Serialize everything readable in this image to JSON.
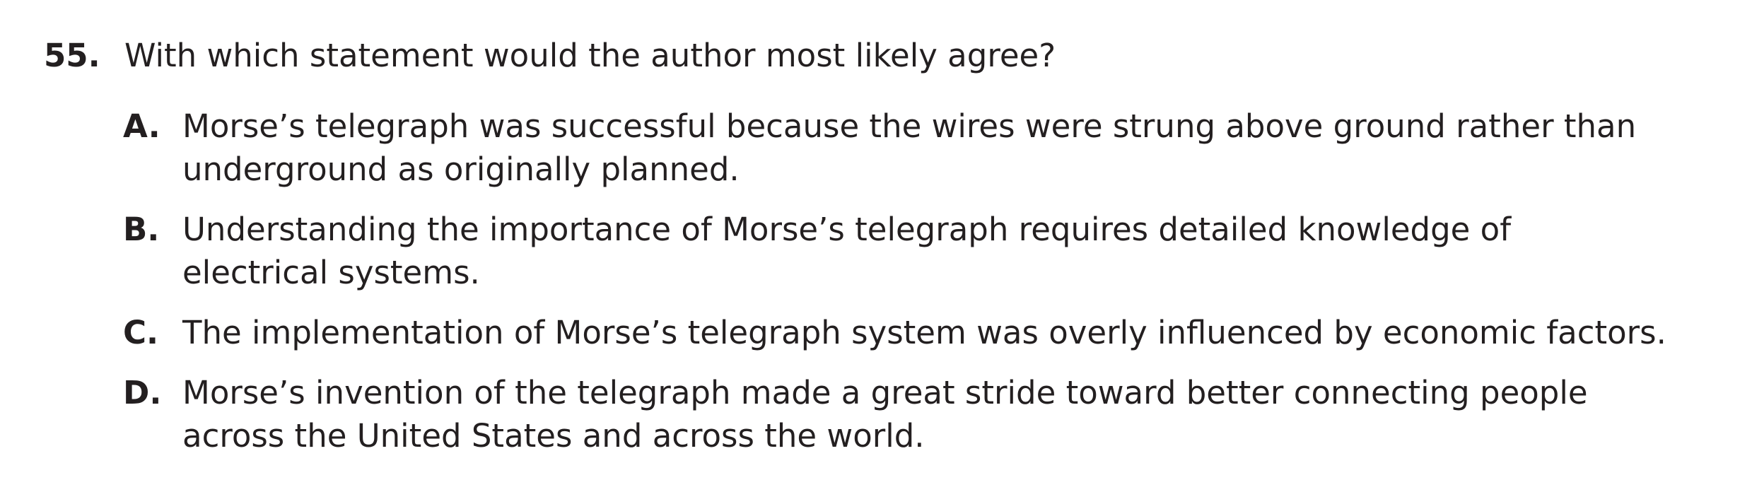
{
  "question": {
    "number": "55.",
    "text": "With which statement would the author most likely agree?",
    "options": [
      {
        "letter": "A.",
        "text": "Morse’s telegraph was successful because the wires were strung above ground rather than\nunderground as originally planned."
      },
      {
        "letter": "B.",
        "text": "Understanding the importance of Morse’s telegraph requires detailed knowledge of\nelectrical systems."
      },
      {
        "letter": "C.",
        "text": "The implementation of Morse’s telegraph system was overly influenced by economic factors."
      },
      {
        "letter": "D.",
        "text": "Morse’s invention of the telegraph made a great stride toward better connecting people\nacross the United States and across the world."
      }
    ]
  }
}
